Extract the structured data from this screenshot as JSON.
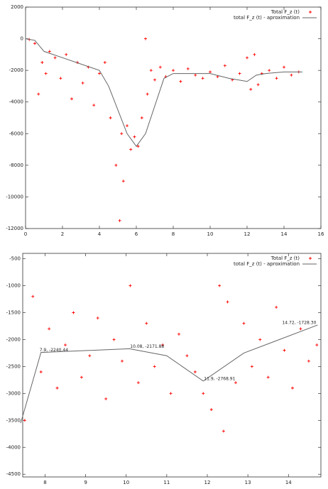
{
  "chart_data": [
    {
      "type": "scatter",
      "xlim": [
        0,
        16
      ],
      "xticks": [
        0,
        2,
        4,
        6,
        8,
        10,
        12,
        14,
        16
      ],
      "ylim": [
        -12000,
        2000
      ],
      "yticks": [
        -12000,
        -10000,
        -8000,
        -6000,
        -4000,
        -2000,
        0,
        2000
      ],
      "legend": "top-right",
      "series": [
        {
          "name": "Total F_z (t)",
          "color": "#ff0000",
          "kind": "points",
          "x": [
            0.2,
            0.5,
            0.7,
            0.9,
            1.1,
            1.3,
            1.6,
            1.9,
            2.2,
            2.5,
            2.8,
            3.1,
            3.4,
            3.7,
            4.0,
            4.3,
            4.6,
            4.9,
            5.1,
            5.2,
            5.3,
            5.5,
            5.7,
            5.9,
            6.1,
            6.3,
            6.5,
            6.6,
            6.8,
            7.0,
            7.3,
            7.6,
            8.0,
            8.4,
            8.8,
            9.2,
            9.6,
            10.0,
            10.4,
            10.8,
            11.2,
            11.6,
            12.0,
            12.2,
            12.4,
            12.6,
            12.8,
            13.2,
            13.6,
            14.0,
            14.4,
            14.8
          ],
          "values": [
            -50,
            -300,
            -3500,
            -1500,
            -2200,
            -800,
            -1200,
            -2500,
            -1000,
            -3800,
            -1500,
            -2800,
            -1800,
            -4200,
            -2200,
            -1500,
            -5000,
            -8000,
            -11500,
            -6000,
            -9000,
            -5500,
            -7000,
            -6200,
            -6800,
            -5000,
            0,
            -3500,
            -2000,
            -2600,
            -1800,
            -2400,
            -2000,
            -2700,
            -1900,
            -2300,
            -2500,
            -2100,
            -2400,
            -1700,
            -2600,
            -2200,
            -1200,
            -3200,
            -1000,
            -2900,
            -2200,
            -2000,
            -2500,
            -1800,
            -2300,
            -2100
          ]
        },
        {
          "name": "total F_z (t) - aproximation",
          "color": "#666666",
          "kind": "line",
          "x": [
            0,
            0.5,
            1,
            2,
            3,
            4,
            4.5,
            5.5,
            6,
            6.5,
            7.5,
            8,
            10,
            11,
            12,
            12.5,
            13,
            14,
            15
          ],
          "values": [
            0,
            -100,
            -800,
            -1200,
            -1600,
            -2000,
            -3000,
            -6000,
            -6800,
            -6000,
            -2500,
            -2200,
            -2200,
            -2500,
            -2700,
            -2300,
            -2200,
            -2100,
            -2100
          ]
        }
      ]
    },
    {
      "type": "scatter",
      "xlim": [
        7.45,
        14.8
      ],
      "xticks": [
        8,
        9,
        10,
        11,
        12,
        13,
        14
      ],
      "ylim": [
        -4550,
        -400
      ],
      "yticks": [
        -4500,
        -4000,
        -3500,
        -3000,
        -2500,
        -2000,
        -1500,
        -1000,
        -500
      ],
      "legend": "top-right",
      "annotations": [
        "7.9, -2240.44",
        "10.08, -2171.88",
        "11.9, -2768.91",
        "14.72, -1728.30"
      ],
      "series": [
        {
          "name": "Total F_z (t)",
          "color": "#ff0000",
          "kind": "points",
          "x": [
            7.5,
            7.7,
            7.9,
            8.1,
            8.3,
            8.5,
            8.7,
            8.9,
            9.1,
            9.3,
            9.5,
            9.7,
            9.9,
            10.1,
            10.3,
            10.5,
            10.7,
            10.9,
            11.1,
            11.3,
            11.5,
            11.7,
            11.9,
            12.1,
            12.3,
            12.4,
            12.5,
            12.7,
            12.9,
            13.1,
            13.3,
            13.5,
            13.7,
            13.9,
            14.1,
            14.3,
            14.5,
            14.7
          ],
          "values": [
            -3500,
            -1200,
            -2600,
            -1800,
            -2900,
            -2100,
            -1500,
            -2700,
            -2300,
            -1600,
            -3100,
            -2000,
            -2400,
            -1000,
            -2800,
            -1700,
            -2500,
            -2100,
            -3000,
            -1900,
            -2300,
            -2600,
            -3000,
            -3300,
            -1000,
            -3700,
            -1300,
            -2800,
            -1700,
            -2500,
            -2000,
            -2700,
            -1400,
            -2200,
            -2900,
            -1800,
            -2400,
            -2100
          ]
        },
        {
          "name": "total F_z (t) - aproximation",
          "color": "#666666",
          "kind": "line",
          "x": [
            7.4,
            7.9,
            10.08,
            11.0,
            11.9,
            12.9,
            14.72
          ],
          "values": [
            -3550,
            -2240,
            -2170,
            -2300,
            -2770,
            -2250,
            -1730
          ]
        }
      ]
    }
  ]
}
